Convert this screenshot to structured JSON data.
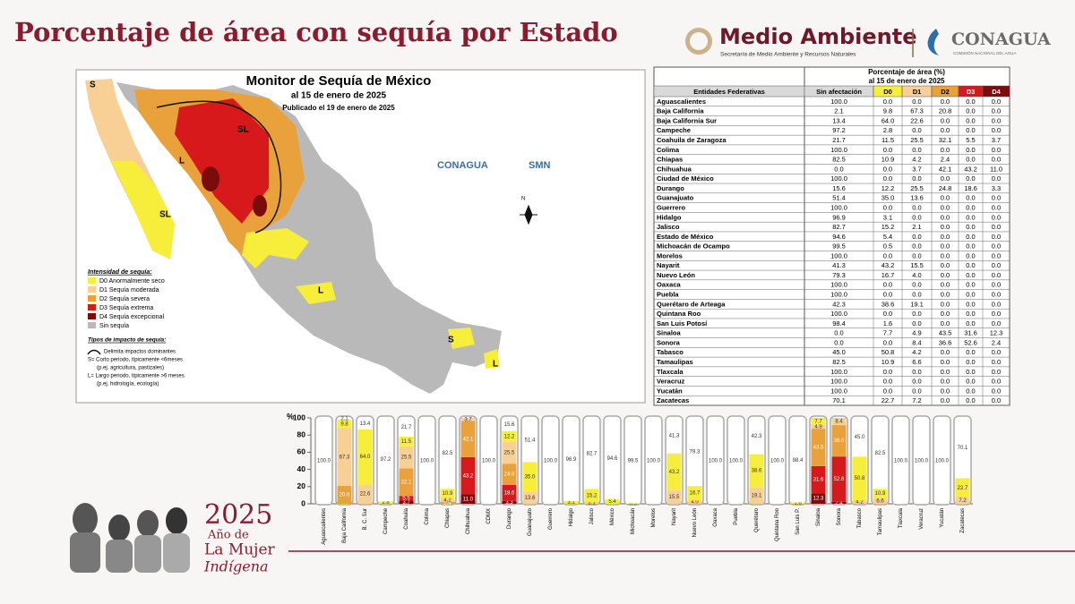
{
  "header": {
    "title": "Porcentaje de área con sequía por Estado"
  },
  "logos": {
    "semarnat": "Medio Ambiente",
    "semarnat_sub": "Secretaría de Medio Ambiente y Recursos Naturales",
    "conagua": "CONAGUA",
    "conagua_sub": "COMISIÓN NACIONAL DEL AGUA"
  },
  "map": {
    "title": "Monitor de Sequía de México",
    "date": "al 15 de enero de 2025",
    "published": "Publicado el 19 de enero de 2025",
    "logo_conagua": "CONAGUA",
    "logo_smn": "SMN",
    "north": "N",
    "region_labels": [
      "S",
      "SL",
      "L",
      "SL",
      "S",
      "L",
      "L"
    ],
    "legend_title": "Intensidad de sequía:",
    "legend": [
      "D0 Anormalmente seco",
      "D1 Sequía moderada",
      "D2 Sequía severa",
      "D3 Sequía extrema",
      "D4 Sequía excepcional",
      "Sin sequía"
    ],
    "impact_title": "Tipos de impacto de sequía:",
    "impact": [
      "Delimita impactos dominantes",
      "S= Corto periodo, típicamente <6meses",
      "(p.ej. agricultura, pastizales)",
      "L= Largo periodo, típicamente >6 meses",
      "(p.ej. hidrología, ecología)"
    ]
  },
  "table": {
    "title": "Porcentaje de área (%)",
    "subtitle": "al 15 de enero de 2025",
    "first_header": "Entidades Federativas",
    "rows": [
      "Aguascalientes",
      "Baja California",
      "Baja California Sur",
      "Campeche",
      "Coahuila de Zaragoza",
      "Colima",
      "Chiapas",
      "Chihuahua",
      "Ciudad de México",
      "Durango",
      "Guanajuato",
      "Guerrero",
      "Hidalgo",
      "Jalisco",
      "Estado de México",
      "Michoacán de Ocampo",
      "Morelos",
      "Nayarit",
      "Nuevo León",
      "Oaxaca",
      "Puebla",
      "Querétaro de Arteaga",
      "Quintana Roo",
      "San Luis Potosí",
      "Sinaloa",
      "Sonora",
      "Tabasco",
      "Tamaulipas",
      "Tlaxcala",
      "Veracruz",
      "Yucatán",
      "Zacatecas"
    ]
  },
  "chart_data": {
    "type": "stacked_bar",
    "ylabel": "%",
    "ylim": [
      0,
      100
    ],
    "yticks": [
      0,
      20,
      40,
      60,
      80,
      100
    ],
    "categories": [
      "Aguascalientes",
      "Baja California",
      "B. C. Sur",
      "Campeche",
      "Coahuila",
      "Colima",
      "Chiapas",
      "Chihuahua",
      "CDMX",
      "Durango",
      "Guanajuato",
      "Guerrero",
      "Hidalgo",
      "Jalisco",
      "México",
      "Michoacán",
      "Morelos",
      "Nayarit",
      "Nuevo León",
      "Oaxaca",
      "Puebla",
      "Querétaro",
      "Quintana Roo",
      "San Luis P.",
      "Sinaloa",
      "Sonora",
      "Tabasco",
      "Tamaulipas",
      "Tlaxcala",
      "Veracruz",
      "Yucatán",
      "Zacatecas"
    ],
    "series": [
      {
        "name": "Sin afectación",
        "color": "#ffffff",
        "values": [
          100,
          2.1,
          13.4,
          97.2,
          21.7,
          100,
          82.5,
          0,
          100,
          15.6,
          51.4,
          100,
          96.9,
          82.7,
          94.6,
          99.5,
          100,
          41.3,
          79.3,
          100,
          100,
          42.3,
          100,
          98.4,
          0,
          0,
          45,
          82.5,
          100,
          100,
          100,
          70.1
        ],
        "value_labels": [
          "100.0",
          "2.1",
          "13.4",
          "97.2",
          "21.7",
          "100.0",
          "82.5",
          "0.0",
          "100.0",
          "15.6",
          "51.4",
          "100.0",
          "96.9",
          "82.7",
          "94.6",
          "99.5",
          "100.0",
          "41.3",
          "79.3",
          "100.0",
          "100.0",
          "42.3",
          "100.0",
          "98.4",
          "0.0",
          "0.0",
          "45.0",
          "82.5",
          "100.0",
          "100.0",
          "100.0",
          "70.1"
        ]
      },
      {
        "name": "D0",
        "color": "#f7ee3c",
        "values": [
          0,
          9.8,
          64,
          2.8,
          11.5,
          0,
          10.9,
          0,
          0,
          12.2,
          35,
          0,
          3.1,
          15.2,
          5.4,
          0.5,
          0,
          43.2,
          16.7,
          0,
          0,
          38.6,
          0,
          1.6,
          7.7,
          0,
          50.8,
          10.9,
          0,
          0,
          0,
          22.7
        ],
        "value_labels": [
          "0.0",
          "9.8",
          "64.0",
          "2.8",
          "11.5",
          "0.0",
          "10.9",
          "0.0",
          "0.0",
          "12.2",
          "35.0",
          "0.0",
          "3.1",
          "15.2",
          "5.4",
          "0.5",
          "0.0",
          "43.2",
          "16.7",
          "0.0",
          "0.0",
          "38.6",
          "0.0",
          "1.6",
          "7.7",
          "0.0",
          "50.8",
          "10.9",
          "0.0",
          "0.0",
          "0.0",
          "22.7"
        ]
      },
      {
        "name": "D1",
        "color": "#f8cf94",
        "values": [
          0,
          67.3,
          22.6,
          0,
          25.5,
          0,
          4.2,
          3.7,
          0,
          25.5,
          13.6,
          0,
          0,
          2.1,
          0,
          0,
          0,
          15.5,
          4,
          0,
          0,
          19.1,
          0,
          0,
          4.9,
          8.4,
          4.2,
          6.6,
          0,
          0,
          0,
          7.2
        ],
        "value_labels": [
          "0.0",
          "67.3",
          "22.6",
          "0.0",
          "25.5",
          "0.0",
          "4.2",
          "3.7",
          "0.0",
          "25.5",
          "13.6",
          "0.0",
          "0.0",
          "2.1",
          "0.0",
          "0.0",
          "0.0",
          "15.5",
          "4.0",
          "0.0",
          "0.0",
          "19.1",
          "0.0",
          "0.0",
          "4.9",
          "8.4",
          "4.2",
          "6.6",
          "0.0",
          "0.0",
          "0.0",
          "7.2"
        ]
      },
      {
        "name": "D2",
        "color": "#e9a23b",
        "values": [
          0,
          20.8,
          0,
          0,
          32.1,
          0,
          2.4,
          42.1,
          0,
          24.8,
          0,
          0,
          0,
          0,
          0,
          0,
          0,
          0,
          0,
          0,
          0,
          0,
          0,
          0,
          43.5,
          36.6,
          0,
          0,
          0,
          0,
          0,
          0
        ],
        "value_labels": [
          "0.0",
          "20.8",
          "0.0",
          "0.0",
          "32.1",
          "0.0",
          "2.4",
          "42.1",
          "0.0",
          "24.8",
          "0.0",
          "0.0",
          "0.0",
          "0.0",
          "0.0",
          "0.0",
          "0.0",
          "0.0",
          "0.0",
          "0.0",
          "0.0",
          "0.0",
          "0.0",
          "0.0",
          "43.5",
          "36.6",
          "0.0",
          "0.0",
          "0.0",
          "0.0",
          "0.0",
          "0.0"
        ]
      },
      {
        "name": "D3",
        "color": "#d7191c",
        "values": [
          0,
          0,
          0,
          0,
          5.5,
          0,
          0,
          43.2,
          0,
          18.6,
          0,
          0,
          0,
          0,
          0,
          0,
          0,
          0,
          0,
          0,
          0,
          0,
          0,
          0,
          31.6,
          52.6,
          0,
          0,
          0,
          0,
          0,
          0
        ],
        "value_labels": [
          "0.0",
          "0.0",
          "0.0",
          "0.0",
          "5.5",
          "0.0",
          "0.0",
          "43.2",
          "0.0",
          "18.6",
          "0.0",
          "0.0",
          "0.0",
          "0.0",
          "0.0",
          "0.0",
          "0.0",
          "0.0",
          "0.0",
          "0.0",
          "0.0",
          "0.0",
          "0.0",
          "0.0",
          "31.6",
          "52.6",
          "0.0",
          "0.0",
          "0.0",
          "0.0",
          "0.0",
          "0.0"
        ]
      },
      {
        "name": "D4",
        "color": "#7a0c0c",
        "values": [
          0,
          0,
          0,
          0,
          3.7,
          0,
          0,
          11,
          0,
          3.3,
          0,
          0,
          0,
          0,
          0,
          0,
          0,
          0,
          0,
          0,
          0,
          0,
          0,
          0,
          12.3,
          2.4,
          0,
          0,
          0,
          0,
          0,
          0
        ],
        "value_labels": [
          "0.0",
          "0.0",
          "0.0",
          "0.0",
          "3.7",
          "0.0",
          "0.0",
          "11.0",
          "0.0",
          "3.3",
          "0.0",
          "0.0",
          "0.0",
          "0.0",
          "0.0",
          "0.0",
          "0.0",
          "0.0",
          "0.0",
          "0.0",
          "0.0",
          "0.0",
          "0.0",
          "0.0",
          "12.3",
          "2.4",
          "0.0",
          "0.0",
          "0.0",
          "0.0",
          "0.0",
          "0.0"
        ]
      }
    ]
  },
  "footer": {
    "year": "2025",
    "line1": "Año de",
    "line2": "La Mujer",
    "line3": "Indígena"
  }
}
